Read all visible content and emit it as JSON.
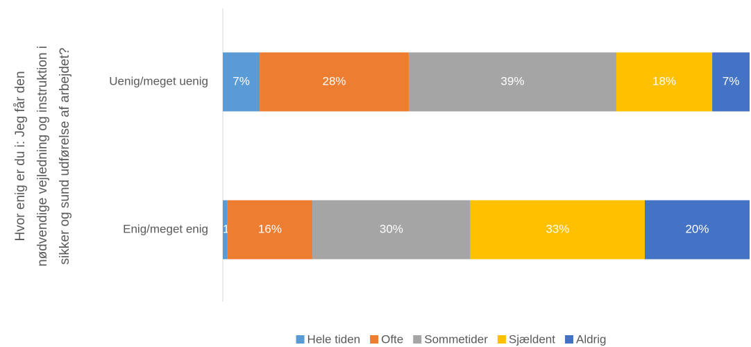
{
  "chart_data": {
    "type": "stacked_bar_horizontal",
    "y_label": [
      "Hvor enig er du i: Jeg får den",
      "nødvendige vejledning og instruktion i",
      "sikker og sund udførelse af arbejdet?"
    ],
    "categories": [
      "Uenig/meget uenig",
      "Enig/meget enig"
    ],
    "xlim": [
      0,
      100
    ],
    "legend": "bottom",
    "series": [
      {
        "name": "Hele tiden",
        "color": "#5b9bd5",
        "values": [
          7.0,
          0.9
        ],
        "value_labels": [
          "7%",
          "1%"
        ]
      },
      {
        "name": "Ofte",
        "color": "#ed7d31",
        "values": [
          28.3,
          16.1
        ],
        "value_labels": [
          "28%",
          "16%"
        ]
      },
      {
        "name": "Sommetider",
        "color": "#a5a5a5",
        "values": [
          39.4,
          30.0
        ],
        "value_labels": [
          "39%",
          "30%"
        ]
      },
      {
        "name": "Sjældent",
        "color": "#ffc000",
        "values": [
          18.2,
          33.1
        ],
        "value_labels": [
          "18%",
          "33%"
        ]
      },
      {
        "name": "Aldrig",
        "color": "#4472c4",
        "values": [
          7.1,
          19.9
        ],
        "value_labels": [
          "7%",
          "20%"
        ]
      }
    ]
  }
}
